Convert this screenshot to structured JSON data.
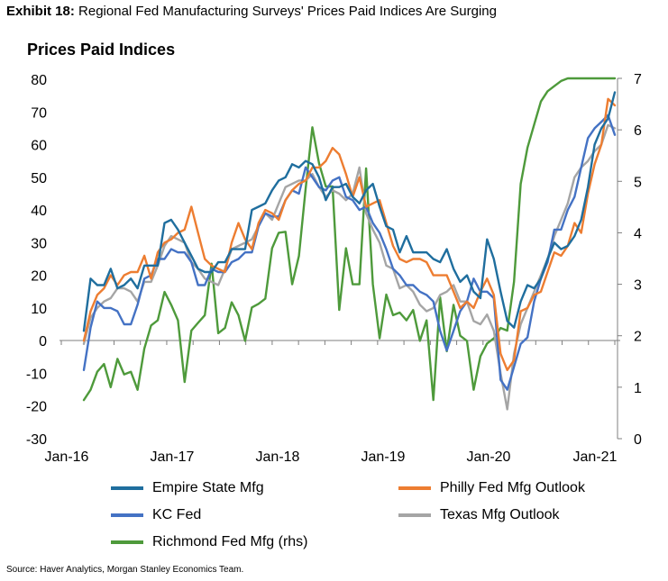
{
  "exhibit": {
    "label": "Exhibit 18:",
    "title": "Regional Fed Manufacturing Surveys' Prices Paid Indices Are Surging"
  },
  "source": "Source: Haver Analytics, Morgan Stanley Economics Team.",
  "chart_data": {
    "type": "line",
    "title": "Prices Paid Indices",
    "x_start": "Jan-16",
    "x_end": "Mar-21",
    "x_tick_labels": [
      "Jan-16",
      "Jan-17",
      "Jan-18",
      "Jan-19",
      "Jan-20",
      "Jan-21"
    ],
    "y_left": {
      "min": -30,
      "max": 80,
      "ticks": [
        -30,
        -20,
        -10,
        0,
        10,
        20,
        30,
        40,
        50,
        60,
        70,
        80
      ]
    },
    "y_right": {
      "min": 0,
      "max": 7,
      "ticks": [
        0,
        1,
        2,
        3,
        4,
        5,
        6,
        7
      ]
    },
    "grid": false,
    "legend_position": "bottom",
    "series": [
      {
        "name": "Empire State Mfg",
        "axis": "left",
        "color": "#1F6E9E",
        "values": [
          3,
          19,
          17,
          17,
          22,
          16,
          17,
          19,
          16,
          23,
          23,
          23,
          36,
          37,
          34,
          30,
          26,
          22,
          21,
          21,
          24,
          24,
          28,
          28,
          28,
          40,
          41,
          42,
          46,
          49,
          50,
          54,
          53,
          55,
          54,
          50,
          43,
          47,
          47,
          48,
          44,
          42,
          46,
          48,
          41,
          35,
          34,
          27,
          32,
          27,
          27,
          27,
          25,
          24,
          28,
          22,
          18,
          20,
          15,
          13,
          31,
          25,
          15,
          6,
          4,
          12,
          17,
          16,
          19,
          25,
          30,
          28,
          29,
          32,
          37,
          47,
          60,
          65,
          68,
          76
        ]
      },
      {
        "name": "Philly Fed Mfg Outlook",
        "axis": "left",
        "color": "#ED7D31",
        "values": [
          0,
          9,
          14,
          16,
          20,
          17,
          20,
          21,
          21,
          26,
          19,
          27,
          30,
          31,
          33,
          34,
          41,
          33,
          25,
          23,
          22,
          21,
          30,
          36,
          31,
          28,
          36,
          40,
          39,
          37,
          43,
          46,
          48,
          49,
          53,
          53,
          55,
          59,
          57,
          51,
          44,
          50,
          41,
          42,
          43,
          36,
          29,
          25,
          24,
          25,
          25,
          24,
          20,
          20,
          20,
          15,
          10,
          12,
          10,
          15,
          19,
          14,
          -4,
          -9,
          -6,
          9,
          10,
          14,
          15,
          21,
          27,
          26,
          29,
          36,
          33,
          45,
          54,
          60,
          74,
          72
        ]
      },
      {
        "name": "KC Fed",
        "axis": "left",
        "color": "#4472C4",
        "values": [
          -9,
          4,
          12,
          10,
          10,
          9,
          5,
          5,
          11,
          19,
          20,
          25,
          25,
          28,
          27,
          27,
          24,
          17,
          17,
          22,
          21,
          21,
          24,
          25,
          27,
          27,
          35,
          39,
          38,
          38,
          43,
          46,
          45,
          53,
          50,
          47,
          46,
          49,
          50,
          44,
          43,
          40,
          41,
          36,
          33,
          28,
          22,
          20,
          17,
          17,
          15,
          14,
          12,
          3,
          -3,
          3,
          9,
          12,
          19,
          15,
          15,
          13,
          -12,
          -15,
          -8,
          -1,
          1,
          12,
          19,
          24,
          34,
          34,
          40,
          44,
          53,
          62,
          65,
          67,
          69,
          63
        ]
      },
      {
        "name": "Texas Mfg Outlook",
        "axis": "left",
        "color": "#A5A5A5",
        "values": [
          -1,
          7,
          10,
          12,
          13,
          16,
          16,
          15,
          12,
          18,
          18,
          23,
          29,
          32,
          31,
          30,
          24,
          22,
          19,
          18,
          17,
          22,
          28,
          29,
          30,
          31,
          35,
          39,
          37,
          42,
          47,
          48,
          49,
          49,
          51,
          47,
          44,
          46,
          45,
          43,
          45,
          53,
          39,
          34,
          30,
          23,
          22,
          16,
          17,
          15,
          11,
          9,
          10,
          14,
          15,
          17,
          12,
          12,
          6,
          5,
          8,
          3,
          -10,
          -21,
          -4,
          5,
          10,
          15,
          20,
          25,
          32,
          37,
          42,
          50,
          53,
          55,
          58,
          60,
          66,
          65
        ]
      },
      {
        "name": "Richmond Fed Mfg (rhs)",
        "axis": "right",
        "color": "#4E9A3B",
        "values": [
          0.75,
          0.95,
          1.3,
          1.45,
          1.0,
          1.55,
          1.25,
          1.3,
          0.95,
          1.75,
          2.2,
          2.3,
          2.85,
          2.6,
          2.3,
          1.1,
          2.1,
          2.25,
          2.4,
          3.4,
          2.05,
          2.15,
          2.65,
          2.4,
          1.9,
          2.55,
          2.62,
          2.72,
          3.7,
          4.0,
          4.02,
          3.0,
          3.55,
          4.85,
          6.05,
          5.35,
          4.9,
          4.9,
          2.5,
          3.7,
          3.0,
          3.0,
          5.25,
          3.0,
          1.95,
          2.8,
          2.4,
          2.45,
          2.3,
          2.5,
          1.9,
          2.3,
          0.75,
          2.75,
          1.7,
          2.6,
          2.0,
          1.9,
          0.95,
          1.6,
          1.85,
          1.95,
          2.15,
          2.1,
          3.05,
          4.95,
          5.65,
          6.1,
          6.55,
          6.75,
          6.85,
          6.95,
          7.0,
          7.0,
          7.0,
          7.0,
          7.0,
          7.0,
          7.0,
          7.0
        ]
      }
    ]
  }
}
